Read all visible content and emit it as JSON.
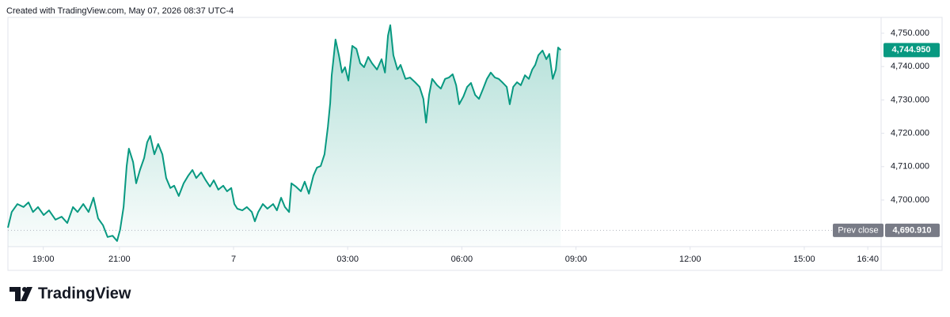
{
  "chart_data": {
    "type": "area",
    "title": "Created with TradingView.com, May 07, 2026 08:37 UTC-4",
    "color": "#089981",
    "grid": false,
    "x": [
      -5.93,
      -5.83,
      -5.68,
      -5.52,
      -5.39,
      -5.27,
      -5.14,
      -4.99,
      -4.85,
      -4.68,
      -4.52,
      -4.37,
      -4.22,
      -4.1,
      -3.95,
      -3.81,
      -3.68,
      -3.56,
      -3.43,
      -3.31,
      -3.18,
      -3.06,
      -2.98,
      -2.89,
      -2.81,
      -2.75,
      -2.64,
      -2.56,
      -2.46,
      -2.35,
      -2.27,
      -2.19,
      -2.08,
      -1.98,
      -1.87,
      -1.77,
      -1.66,
      -1.56,
      -1.44,
      -1.31,
      -1.19,
      -1.08,
      -0.98,
      -0.85,
      -0.73,
      -0.62,
      -0.52,
      -0.4,
      -0.27,
      -0.17,
      -0.06,
      0.02,
      0.1,
      0.23,
      0.35,
      0.48,
      0.56,
      0.65,
      0.77,
      0.89,
      1.04,
      1.14,
      1.25,
      1.35,
      1.46,
      1.52,
      1.64,
      1.77,
      1.87,
      1.98,
      2.1,
      2.19,
      2.29,
      2.39,
      2.48,
      2.54,
      2.58,
      2.62,
      2.68,
      2.77,
      2.85,
      2.93,
      3.02,
      3.12,
      3.23,
      3.33,
      3.43,
      3.54,
      3.64,
      3.77,
      3.89,
      3.98,
      4.06,
      4.12,
      4.2,
      4.31,
      4.39,
      4.52,
      4.64,
      4.77,
      4.89,
      4.99,
      5.06,
      5.14,
      5.22,
      5.35,
      5.45,
      5.56,
      5.66,
      5.76,
      5.85,
      5.93,
      6.04,
      6.14,
      6.24,
      6.35,
      6.45,
      6.56,
      6.66,
      6.76,
      6.87,
      6.97,
      7.08,
      7.18,
      7.26,
      7.35,
      7.45,
      7.55,
      7.66,
      7.76,
      7.85,
      7.93,
      8.01,
      8.12,
      8.22,
      8.3,
      8.39,
      8.47,
      8.53,
      8.6
    ],
    "values": [
      4691.7,
      4696.4,
      4698.8,
      4697.9,
      4699.3,
      4696.4,
      4697.9,
      4695.5,
      4696.9,
      4694.1,
      4695.0,
      4693.1,
      4697.9,
      4696.4,
      4698.8,
      4696.4,
      4700.7,
      4694.5,
      4692.4,
      4688.9,
      4689.3,
      4687.7,
      4691.2,
      4697.9,
      4710.2,
      4715.4,
      4711.4,
      4705.0,
      4709.0,
      4712.6,
      4717.3,
      4719.2,
      4713.7,
      4716.8,
      4713.7,
      4706.6,
      4703.6,
      4704.3,
      4701.2,
      4705.0,
      4707.3,
      4709.0,
      4706.6,
      4708.3,
      4705.9,
      4704.0,
      4705.9,
      4703.1,
      4704.3,
      4702.6,
      4703.6,
      4698.8,
      4697.4,
      4696.9,
      4697.9,
      4696.4,
      4693.6,
      4696.4,
      4698.8,
      4697.4,
      4698.8,
      4696.9,
      4700.7,
      4697.9,
      4696.4,
      4705.0,
      4704.0,
      4702.6,
      4705.5,
      4701.9,
      4707.3,
      4709.7,
      4710.2,
      4713.7,
      4722.0,
      4729.1,
      4737.4,
      4741.5,
      4748.1,
      4743.4,
      4738.2,
      4739.8,
      4735.8,
      4746.2,
      4745.3,
      4741.0,
      4739.8,
      4742.9,
      4741.0,
      4739.1,
      4742.2,
      4738.2,
      4749.3,
      4752.4,
      4743.4,
      4739.1,
      4740.5,
      4736.3,
      4736.7,
      4735.3,
      4733.9,
      4730.3,
      4723.2,
      4731.5,
      4736.3,
      4734.4,
      4733.4,
      4736.3,
      4736.7,
      4737.7,
      4734.4,
      4728.7,
      4731.0,
      4733.9,
      4735.1,
      4731.5,
      4730.3,
      4733.4,
      4736.3,
      4738.2,
      4736.7,
      4736.3,
      4735.1,
      4733.9,
      4728.7,
      4733.9,
      4735.3,
      4734.4,
      4737.4,
      4736.3,
      4739.1,
      4740.5,
      4743.4,
      4744.8,
      4742.2,
      4743.8,
      4736.3,
      4739.1,
      4745.7,
      4744.95
    ],
    "xlim": [
      -5.93,
      17.02
    ],
    "ylim": [
      4686.02,
      4754.74
    ],
    "xticks": [
      {
        "value": -5,
        "label": "19:00"
      },
      {
        "value": -3,
        "label": "21:00"
      },
      {
        "value": 0,
        "label": "7"
      },
      {
        "value": 3,
        "label": "03:00"
      },
      {
        "value": 6,
        "label": "06:00"
      },
      {
        "value": 9,
        "label": "09:00"
      },
      {
        "value": 12,
        "label": "12:00"
      },
      {
        "value": 15,
        "label": "15:00"
      },
      {
        "value": 16.67,
        "label": "16:40"
      }
    ],
    "yticks": [
      {
        "value": 4700,
        "label": "4,700.000"
      },
      {
        "value": 4710,
        "label": "4,710.000"
      },
      {
        "value": 4720,
        "label": "4,720.000"
      },
      {
        "value": 4730,
        "label": "4,730.000"
      },
      {
        "value": 4740,
        "label": "4,740.000"
      },
      {
        "value": 4750,
        "label": "4,750.000"
      }
    ],
    "last_price": {
      "value": 4744.95,
      "label": "4,744.950"
    },
    "prev_close": {
      "name": "Prev close",
      "value": 4690.91,
      "label": "4,690.910"
    },
    "brand": "TradingView"
  }
}
